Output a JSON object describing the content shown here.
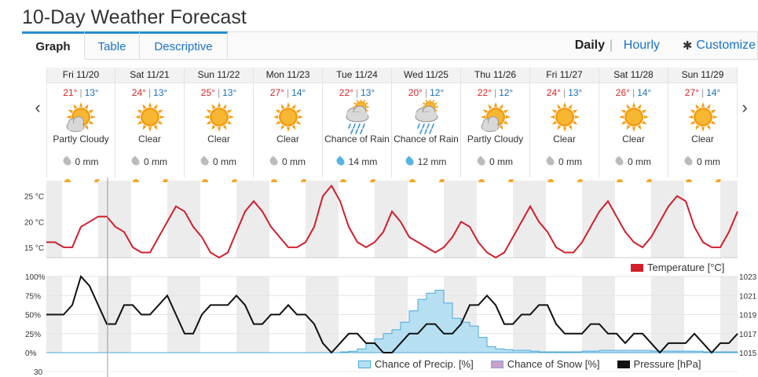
{
  "page": {
    "title": "10-Day Weather Forecast"
  },
  "tabs": [
    {
      "label": "Graph",
      "active": true
    },
    {
      "label": "Table",
      "active": false
    },
    {
      "label": "Descriptive",
      "active": false
    }
  ],
  "view": {
    "daily": "Daily",
    "separator": "|",
    "hourly": "Hourly",
    "customize": "Customize",
    "customize_icon": "gear-icon"
  },
  "nav": {
    "prev": "‹",
    "next": "›"
  },
  "precip_unit": "mm",
  "days": [
    {
      "label": "Fri 11/20",
      "hi": "21°",
      "lo": "13°",
      "icon": "partly-cloudy",
      "condition": "Partly Cloudy",
      "precip": "0 mm",
      "rain": false
    },
    {
      "label": "Sat 11/21",
      "hi": "24°",
      "lo": "13°",
      "icon": "sun",
      "condition": "Clear",
      "precip": "0 mm",
      "rain": false
    },
    {
      "label": "Sun 11/22",
      "hi": "25°",
      "lo": "13°",
      "icon": "sun",
      "condition": "Clear",
      "precip": "0 mm",
      "rain": false
    },
    {
      "label": "Mon 11/23",
      "hi": "27°",
      "lo": "14°",
      "icon": "sun",
      "condition": "Clear",
      "precip": "0 mm",
      "rain": false
    },
    {
      "label": "Tue 11/24",
      "hi": "22°",
      "lo": "13°",
      "icon": "rain",
      "condition": "Chance of Rain",
      "precip": "14 mm",
      "rain": true
    },
    {
      "label": "Wed 11/25",
      "hi": "20°",
      "lo": "12°",
      "icon": "rain",
      "condition": "Chance of Rain",
      "precip": "12 mm",
      "rain": true
    },
    {
      "label": "Thu 11/26",
      "hi": "22°",
      "lo": "12°",
      "icon": "partly-cloudy",
      "condition": "Partly Cloudy",
      "precip": "0 mm",
      "rain": false
    },
    {
      "label": "Fri 11/27",
      "hi": "24°",
      "lo": "13°",
      "icon": "sun",
      "condition": "Clear",
      "precip": "0 mm",
      "rain": false
    },
    {
      "label": "Sat 11/28",
      "hi": "26°",
      "lo": "14°",
      "icon": "sun",
      "condition": "Clear",
      "precip": "0 mm",
      "rain": false
    },
    {
      "label": "Sun 11/29",
      "hi": "27°",
      "lo": "14°",
      "icon": "sun",
      "condition": "Clear",
      "precip": "0 mm",
      "rain": false
    }
  ],
  "colors": {
    "accent": "#2a8ccf",
    "temperature": "#d0202e",
    "precip_fill": "#b6e0f2",
    "precip_stroke": "#4aa8d8",
    "snow": "#c7a3c8",
    "pressure": "#111111"
  },
  "chart_data": [
    {
      "type": "line",
      "x_unit": "day",
      "x": [
        0,
        0.125,
        0.25,
        0.375,
        0.5,
        0.625,
        0.75,
        0.875,
        1,
        1.125,
        1.25,
        1.375,
        1.5,
        1.625,
        1.75,
        1.875,
        2,
        2.125,
        2.25,
        2.375,
        2.5,
        2.625,
        2.75,
        2.875,
        3,
        3.125,
        3.25,
        3.375,
        3.5,
        3.625,
        3.75,
        3.875,
        4,
        4.125,
        4.25,
        4.375,
        4.5,
        4.625,
        4.75,
        4.875,
        5,
        5.125,
        5.25,
        5.375,
        5.5,
        5.625,
        5.75,
        5.875,
        6,
        6.125,
        6.25,
        6.375,
        6.5,
        6.625,
        6.75,
        6.875,
        7,
        7.125,
        7.25,
        7.375,
        7.5,
        7.625,
        7.75,
        7.875,
        8,
        8.125,
        8.25,
        8.375,
        8.5,
        8.625,
        8.75,
        8.875,
        9,
        9.125,
        9.25,
        9.375,
        9.5,
        9.625,
        9.75,
        9.875,
        10
      ],
      "series": [
        {
          "name": "Temperature [°C]",
          "values": [
            16,
            16,
            15,
            15,
            19,
            20,
            21,
            21,
            19,
            18,
            15,
            14,
            14,
            17,
            20,
            23,
            22,
            19,
            17,
            14,
            13,
            14,
            18,
            22,
            24,
            22,
            19,
            17,
            15,
            15,
            16,
            19,
            25,
            27,
            24,
            19,
            16,
            15,
            16,
            18,
            22,
            20,
            17,
            16,
            15,
            14,
            15,
            17,
            20,
            19,
            16,
            14,
            13,
            14,
            17,
            20,
            23,
            20,
            18,
            15,
            14,
            14,
            16,
            19,
            22,
            24,
            21,
            18,
            16,
            15,
            17,
            20,
            23,
            25,
            24,
            19,
            16,
            15,
            15,
            18,
            22
          ]
        }
      ],
      "xlabel": "",
      "ylabel": "",
      "ylim": [
        13,
        28
      ],
      "yticks": [
        "15 °C",
        "20 °C",
        "25 °C"
      ],
      "grid": true,
      "legend": "right-top"
    },
    {
      "type": "area",
      "x_unit": "day",
      "x": [
        0,
        0.125,
        0.25,
        0.375,
        0.5,
        0.625,
        0.75,
        0.875,
        1,
        1.125,
        1.25,
        1.375,
        1.5,
        1.625,
        1.75,
        1.875,
        2,
        2.125,
        2.25,
        2.375,
        2.5,
        2.625,
        2.75,
        2.875,
        3,
        3.125,
        3.25,
        3.375,
        3.5,
        3.625,
        3.75,
        3.875,
        4,
        4.125,
        4.25,
        4.375,
        4.5,
        4.625,
        4.75,
        4.875,
        5,
        5.125,
        5.25,
        5.375,
        5.5,
        5.625,
        5.75,
        5.875,
        6,
        6.125,
        6.25,
        6.375,
        6.5,
        6.625,
        6.75,
        6.875,
        7,
        7.125,
        7.25,
        7.375,
        7.5,
        7.625,
        7.75,
        7.875,
        8,
        8.125,
        8.25,
        8.375,
        8.5,
        8.625,
        8.75,
        8.875,
        9,
        9.125,
        9.25,
        9.375,
        9.5,
        9.625,
        9.75,
        9.875,
        10
      ],
      "series": [
        {
          "name": "Chance of Precip. [%]",
          "axis": "left",
          "values": [
            0,
            0,
            0,
            0,
            0,
            0,
            0,
            0,
            0,
            0,
            0,
            0,
            0,
            0,
            0,
            0,
            0,
            0,
            0,
            0,
            0,
            0,
            0,
            0,
            0,
            0,
            0,
            0,
            0,
            0,
            0,
            0,
            0,
            0,
            1,
            2,
            5,
            12,
            18,
            25,
            30,
            40,
            55,
            70,
            78,
            82,
            65,
            45,
            40,
            35,
            20,
            8,
            5,
            4,
            3,
            3,
            2,
            1,
            1,
            1,
            1,
            1,
            2,
            2,
            3,
            3,
            3,
            3,
            3,
            3,
            2,
            2,
            2,
            2,
            2,
            2,
            1,
            1,
            1,
            1,
            1
          ]
        },
        {
          "name": "Chance of Snow [%]",
          "axis": "left",
          "values": [
            0,
            0,
            0,
            0,
            0,
            0,
            0,
            0,
            0,
            0,
            0,
            0,
            0,
            0,
            0,
            0,
            0,
            0,
            0,
            0,
            0,
            0,
            0,
            0,
            0,
            0,
            0,
            0,
            0,
            0,
            0,
            0,
            0,
            0,
            0,
            0,
            0,
            0,
            0,
            0,
            0,
            0,
            0,
            0,
            0,
            0,
            0,
            0,
            0,
            0,
            0,
            0,
            0,
            0,
            0,
            0,
            0,
            0,
            0,
            0,
            0,
            0,
            0,
            0,
            0,
            0,
            0,
            0,
            0,
            0,
            0,
            0,
            0,
            0,
            0,
            0,
            0,
            0,
            0,
            0,
            0
          ]
        },
        {
          "name": "Pressure [hPa]",
          "axis": "right",
          "values": [
            1019,
            1019,
            1019,
            1020,
            1023,
            1022,
            1020,
            1018,
            1018,
            1020,
            1020,
            1019,
            1019,
            1020,
            1021,
            1019,
            1017,
            1017,
            1019,
            1020,
            1020,
            1020,
            1021,
            1020,
            1018,
            1018,
            1019,
            1019,
            1020,
            1019,
            1019,
            1018,
            1016,
            1015,
            1016,
            1017,
            1017,
            1016,
            1016,
            1015,
            1015,
            1016,
            1017,
            1017,
            1018,
            1018,
            1017,
            1017,
            1018,
            1020,
            1020,
            1021,
            1020,
            1018,
            1018,
            1019,
            1019,
            1020,
            1020,
            1018,
            1017,
            1017,
            1017,
            1018,
            1018,
            1017,
            1017,
            1016,
            1017,
            1017,
            1016,
            1015,
            1016,
            1016,
            1016,
            1017,
            1016,
            1015,
            1016,
            1016,
            1017
          ]
        }
      ],
      "yticks_left": [
        "0%",
        "25%",
        "50%",
        "75%",
        "100%"
      ],
      "yticks_right": [
        "1015",
        "1017",
        "1019",
        "1021",
        "1023"
      ],
      "ylim_left": [
        0,
        100
      ],
      "ylim_right": [
        1015,
        1023
      ],
      "grid": true,
      "legend": "bottom"
    }
  ],
  "next_chart_first_tick": "30"
}
